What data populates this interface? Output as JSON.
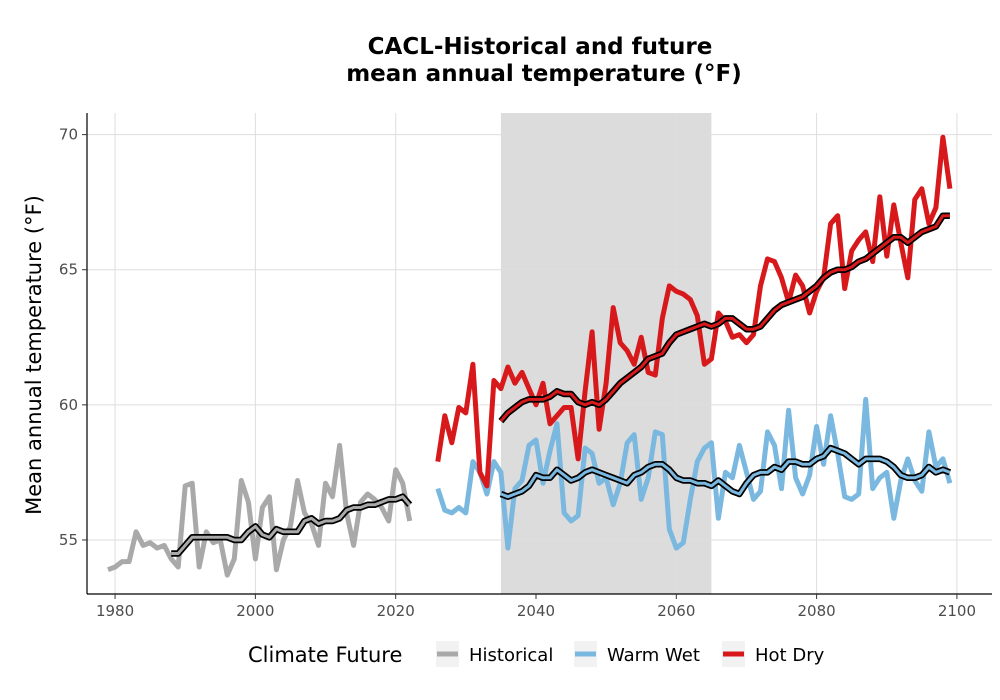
{
  "chart_data": {
    "type": "line",
    "title_line1": "CACL-Historical and future",
    "title_line2": "mean annual temperature (°F)",
    "xlabel": "",
    "ylabel": "Mean annual temperature (°F)",
    "xlim": [
      1976,
      2105
    ],
    "ylim": [
      53,
      70.8
    ],
    "xticks": [
      1980,
      2000,
      2020,
      2040,
      2060,
      2080,
      2100
    ],
    "yticks": [
      55,
      60,
      65,
      70
    ],
    "grid": true,
    "shaded_period": [
      2035,
      2065
    ],
    "legend": {
      "title": "Climate Future",
      "placement": "bottom",
      "entries": [
        "Historical",
        "Warm Wet",
        "Hot Dry"
      ]
    },
    "colors": {
      "Historical": "#a9a9a9",
      "Warm Wet": "#7bb8e0",
      "Hot Dry": "#d7191c",
      "smooth": "#000000",
      "shade": "#dcdcdc"
    },
    "series": [
      {
        "name": "Historical",
        "x": [
          1979,
          1980,
          1981,
          1982,
          1983,
          1984,
          1985,
          1986,
          1987,
          1988,
          1989,
          1990,
          1991,
          1992,
          1993,
          1994,
          1995,
          1996,
          1997,
          1998,
          1999,
          2000,
          2001,
          2002,
          2003,
          2004,
          2005,
          2006,
          2007,
          2008,
          2009,
          2010,
          2011,
          2012,
          2013,
          2014,
          2015,
          2016,
          2017,
          2018,
          2019,
          2020,
          2021,
          2022
        ],
        "values": [
          53.9,
          54.0,
          54.2,
          54.2,
          55.3,
          54.8,
          54.9,
          54.7,
          54.8,
          54.3,
          54.0,
          57.0,
          57.1,
          54.0,
          55.3,
          54.9,
          55.0,
          53.7,
          54.3,
          57.2,
          56.4,
          54.3,
          56.2,
          56.6,
          53.9,
          55.0,
          55.5,
          57.2,
          56.0,
          55.6,
          54.8,
          57.1,
          56.6,
          58.5,
          56.0,
          54.8,
          56.4,
          56.7,
          56.5,
          56.2,
          55.7,
          57.6,
          57.1,
          55.7
        ],
        "smooth_x": [
          1988,
          1989,
          1990,
          1991,
          1992,
          1993,
          1994,
          1995,
          1996,
          1997,
          1998,
          1999,
          2000,
          2001,
          2002,
          2003,
          2004,
          2005,
          2006,
          2007,
          2008,
          2009,
          2010,
          2011,
          2012,
          2013,
          2014,
          2015,
          2016,
          2017,
          2018,
          2019,
          2020,
          2021,
          2022
        ],
        "smooth_values": [
          54.5,
          54.5,
          54.8,
          55.1,
          55.1,
          55.1,
          55.1,
          55.1,
          55.1,
          55.0,
          55.0,
          55.3,
          55.5,
          55.2,
          55.1,
          55.4,
          55.3,
          55.3,
          55.3,
          55.7,
          55.8,
          55.6,
          55.7,
          55.7,
          55.8,
          56.1,
          56.2,
          56.2,
          56.3,
          56.3,
          56.4,
          56.5,
          56.5,
          56.6,
          56.3
        ]
      },
      {
        "name": "Warm Wet",
        "x": [
          2026,
          2027,
          2028,
          2029,
          2030,
          2031,
          2032,
          2033,
          2034,
          2035,
          2036,
          2037,
          2038,
          2039,
          2040,
          2041,
          2042,
          2043,
          2044,
          2045,
          2046,
          2047,
          2048,
          2049,
          2050,
          2051,
          2052,
          2053,
          2054,
          2055,
          2056,
          2057,
          2058,
          2059,
          2060,
          2061,
          2062,
          2063,
          2064,
          2065,
          2066,
          2067,
          2068,
          2069,
          2070,
          2071,
          2072,
          2073,
          2074,
          2075,
          2076,
          2077,
          2078,
          2079,
          2080,
          2081,
          2082,
          2083,
          2084,
          2085,
          2086,
          2087,
          2088,
          2089,
          2090,
          2091,
          2092,
          2093,
          2094,
          2095,
          2096,
          2097,
          2098,
          2099
        ],
        "values": [
          56.9,
          56.1,
          56.0,
          56.2,
          56.0,
          57.9,
          57.5,
          56.7,
          57.9,
          57.5,
          54.7,
          56.9,
          57.2,
          58.5,
          58.7,
          57.1,
          58.3,
          59.3,
          56.0,
          55.7,
          55.9,
          58.4,
          58.2,
          57.1,
          57.3,
          56.3,
          57.1,
          58.6,
          58.9,
          56.5,
          57.3,
          59.0,
          58.9,
          55.4,
          54.7,
          54.9,
          56.5,
          57.9,
          58.4,
          58.6,
          55.8,
          57.5,
          57.3,
          58.5,
          57.5,
          56.5,
          56.8,
          59.0,
          58.5,
          56.9,
          59.8,
          57.3,
          56.7,
          57.4,
          59.2,
          57.8,
          59.6,
          58.2,
          56.6,
          56.5,
          56.7,
          60.2,
          56.9,
          57.3,
          57.5,
          55.8,
          57.2,
          58.0,
          57.2,
          56.8,
          59.0,
          57.7,
          58.0,
          57.1
        ],
        "smooth_x": [
          2035,
          2036,
          2037,
          2038,
          2039,
          2040,
          2041,
          2042,
          2043,
          2044,
          2045,
          2046,
          2047,
          2048,
          2049,
          2050,
          2051,
          2052,
          2053,
          2054,
          2055,
          2056,
          2057,
          2058,
          2059,
          2060,
          2061,
          2062,
          2063,
          2064,
          2065,
          2066,
          2067,
          2068,
          2069,
          2070,
          2071,
          2072,
          2073,
          2074,
          2075,
          2076,
          2077,
          2078,
          2079,
          2080,
          2081,
          2082,
          2083,
          2084,
          2085,
          2086,
          2087,
          2088,
          2089,
          2090,
          2091,
          2092,
          2093,
          2094,
          2095,
          2096,
          2097,
          2098,
          2099
        ],
        "smooth_values": [
          56.7,
          56.6,
          56.7,
          56.8,
          57.0,
          57.4,
          57.3,
          57.3,
          57.6,
          57.4,
          57.2,
          57.3,
          57.5,
          57.6,
          57.5,
          57.4,
          57.3,
          57.2,
          57.1,
          57.4,
          57.5,
          57.7,
          57.8,
          57.8,
          57.6,
          57.3,
          57.2,
          57.2,
          57.1,
          57.1,
          57.0,
          57.2,
          57.0,
          56.8,
          56.7,
          57.1,
          57.4,
          57.5,
          57.5,
          57.7,
          57.6,
          57.9,
          57.9,
          57.8,
          57.8,
          58.0,
          58.1,
          58.4,
          58.3,
          58.2,
          58.0,
          57.8,
          58.0,
          58.0,
          58.0,
          57.9,
          57.7,
          57.4,
          57.3,
          57.3,
          57.4,
          57.7,
          57.5,
          57.6,
          57.5
        ]
      },
      {
        "name": "Hot Dry",
        "x": [
          2026,
          2027,
          2028,
          2029,
          2030,
          2031,
          2032,
          2033,
          2034,
          2035,
          2036,
          2037,
          2038,
          2039,
          2040,
          2041,
          2042,
          2043,
          2044,
          2045,
          2046,
          2047,
          2048,
          2049,
          2050,
          2051,
          2052,
          2053,
          2054,
          2055,
          2056,
          2057,
          2058,
          2059,
          2060,
          2061,
          2062,
          2063,
          2064,
          2065,
          2066,
          2067,
          2068,
          2069,
          2070,
          2071,
          2072,
          2073,
          2074,
          2075,
          2076,
          2077,
          2078,
          2079,
          2080,
          2081,
          2082,
          2083,
          2084,
          2085,
          2086,
          2087,
          2088,
          2089,
          2090,
          2091,
          2092,
          2093,
          2094,
          2095,
          2096,
          2097,
          2098,
          2099
        ],
        "values": [
          57.9,
          59.6,
          58.6,
          59.9,
          59.7,
          61.5,
          57.5,
          57.0,
          60.9,
          60.6,
          61.4,
          60.8,
          61.2,
          60.6,
          60.0,
          60.8,
          59.3,
          59.6,
          59.9,
          59.9,
          58.0,
          60.5,
          62.7,
          59.1,
          60.8,
          63.6,
          62.3,
          62.0,
          61.5,
          62.5,
          61.2,
          61.1,
          63.2,
          64.4,
          64.2,
          64.1,
          63.9,
          63.3,
          61.5,
          61.7,
          63.4,
          63.1,
          62.5,
          62.6,
          62.3,
          62.6,
          64.4,
          65.4,
          65.3,
          64.7,
          63.8,
          64.8,
          64.4,
          63.4,
          64.2,
          64.7,
          66.7,
          67.0,
          64.3,
          65.7,
          66.1,
          66.4,
          65.3,
          67.7,
          65.5,
          67.4,
          66.0,
          64.7,
          67.6,
          68.0,
          66.7,
          67.3,
          69.9,
          68.0
        ],
        "smooth_x": [
          2035,
          2036,
          2037,
          2038,
          2039,
          2040,
          2041,
          2042,
          2043,
          2044,
          2045,
          2046,
          2047,
          2048,
          2049,
          2050,
          2051,
          2052,
          2053,
          2054,
          2055,
          2056,
          2057,
          2058,
          2059,
          2060,
          2061,
          2062,
          2063,
          2064,
          2065,
          2066,
          2067,
          2068,
          2069,
          2070,
          2071,
          2072,
          2073,
          2074,
          2075,
          2076,
          2077,
          2078,
          2079,
          2080,
          2081,
          2082,
          2083,
          2084,
          2085,
          2086,
          2087,
          2088,
          2089,
          2090,
          2091,
          2092,
          2093,
          2094,
          2095,
          2096,
          2097,
          2098,
          2099
        ],
        "smooth_values": [
          59.4,
          59.7,
          59.9,
          60.1,
          60.2,
          60.2,
          60.2,
          60.3,
          60.5,
          60.4,
          60.4,
          60.1,
          60.0,
          60.1,
          60.0,
          60.2,
          60.5,
          60.8,
          61.0,
          61.2,
          61.4,
          61.7,
          61.8,
          61.9,
          62.3,
          62.6,
          62.7,
          62.8,
          62.9,
          63.0,
          62.9,
          63.0,
          63.2,
          63.2,
          63.0,
          62.8,
          62.8,
          62.9,
          63.2,
          63.5,
          63.7,
          63.8,
          63.9,
          64.0,
          64.2,
          64.4,
          64.7,
          64.9,
          65.0,
          65.0,
          65.1,
          65.3,
          65.4,
          65.6,
          65.8,
          66.0,
          66.2,
          66.2,
          66.0,
          66.2,
          66.4,
          66.5,
          66.6,
          67.0,
          67.0
        ]
      }
    ]
  }
}
